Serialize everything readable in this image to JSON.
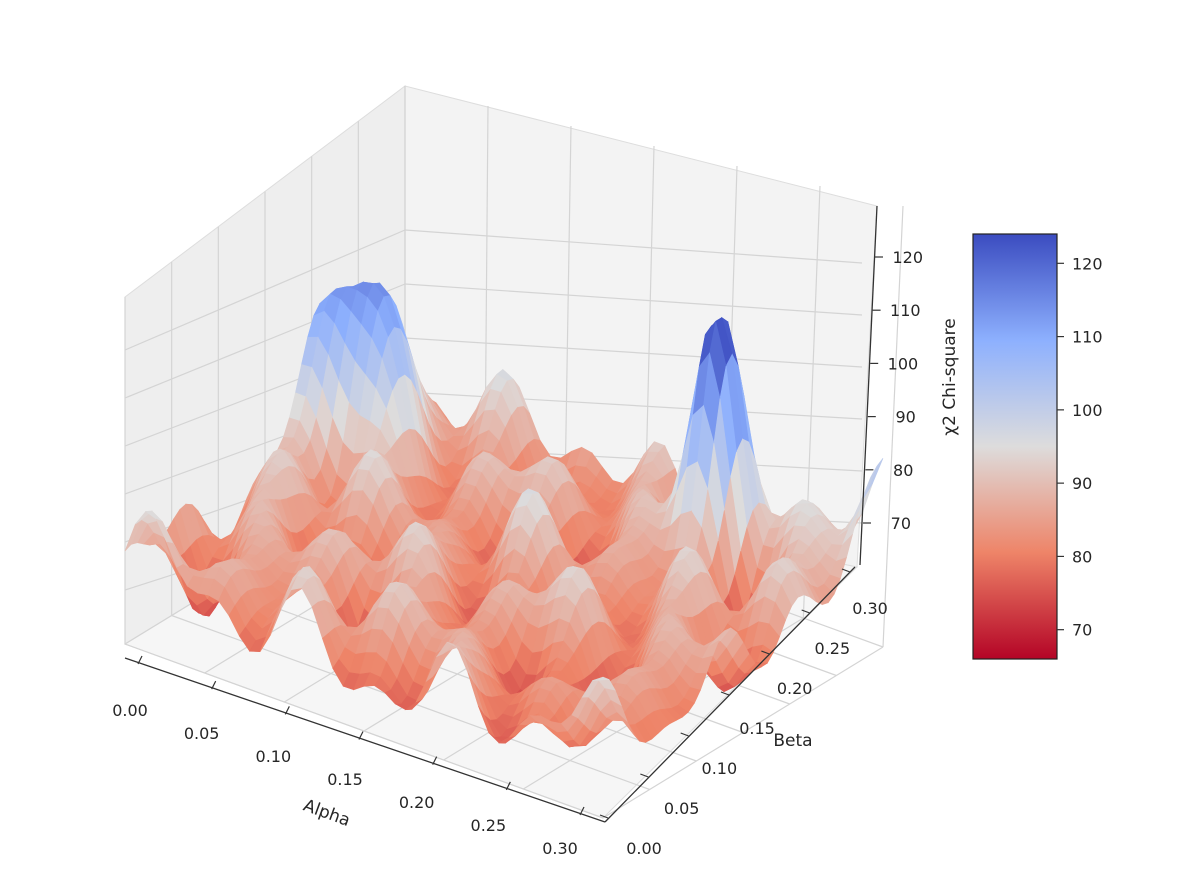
{
  "chart_data": {
    "type": "surface",
    "xlabel": "Alpha",
    "ylabel": "Beta",
    "zlabel": "χ2 Chi-square",
    "xlim": [
      0.0,
      0.3
    ],
    "ylim": [
      0.0,
      0.3
    ],
    "zlim": [
      64,
      126
    ],
    "x_ticks": [
      "0.00",
      "0.05",
      "0.10",
      "0.15",
      "0.20",
      "0.25",
      "0.30"
    ],
    "y_ticks": [
      "0.00",
      "0.05",
      "0.10",
      "0.15",
      "0.20",
      "0.25",
      "0.30"
    ],
    "z_ticks": [
      "70",
      "80",
      "90",
      "100",
      "110",
      "120"
    ],
    "colormap": "coolwarm_r",
    "colorbar": {
      "min": 66,
      "max": 124,
      "ticks": [
        "70",
        "80",
        "90",
        "100",
        "110",
        "120"
      ]
    },
    "peaks": [
      {
        "x": 0.22,
        "y": 0.26,
        "z": 124
      },
      {
        "x": 0.01,
        "y": 0.21,
        "z": 103
      },
      {
        "x": 0.025,
        "y": 0.23,
        "z": 100
      },
      {
        "x": 0.3,
        "y": 0.3,
        "z": 109
      }
    ],
    "min_value": 66
  }
}
